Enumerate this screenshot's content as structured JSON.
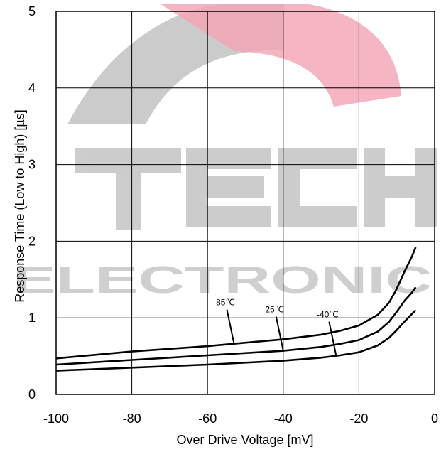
{
  "chart_data": {
    "type": "line",
    "title": "",
    "xlabel": "Over Drive Voltage [mV]",
    "ylabel": "Response Time (Low to High) [µs]",
    "xlim": [
      -100,
      0
    ],
    "ylim": [
      0,
      5
    ],
    "x_ticks": [
      -100,
      -80,
      -60,
      -40,
      -20,
      0
    ],
    "y_ticks": [
      0,
      1,
      2,
      3,
      4,
      5
    ],
    "x_tick_labels": [
      "-100",
      "-80",
      "-60",
      "-40",
      "-20",
      "0"
    ],
    "y_tick_labels": [
      "0",
      "1",
      "2",
      "3",
      "4",
      "5"
    ],
    "grid": true,
    "line_color": "#000000",
    "series": [
      {
        "name": "85℃",
        "points": [
          [
            -100,
            0.47
          ],
          [
            -80,
            0.56
          ],
          [
            -60,
            0.63
          ],
          [
            -40,
            0.72
          ],
          [
            -30,
            0.78
          ],
          [
            -25,
            0.83
          ],
          [
            -20,
            0.9
          ],
          [
            -15,
            1.04
          ],
          [
            -12,
            1.2
          ],
          [
            -10,
            1.38
          ],
          [
            -8,
            1.6
          ],
          [
            -6,
            1.8
          ],
          [
            -5,
            1.92
          ]
        ]
      },
      {
        "name": "25℃",
        "points": [
          [
            -100,
            0.39
          ],
          [
            -80,
            0.45
          ],
          [
            -60,
            0.51
          ],
          [
            -40,
            0.57
          ],
          [
            -30,
            0.62
          ],
          [
            -25,
            0.66
          ],
          [
            -20,
            0.71
          ],
          [
            -15,
            0.82
          ],
          [
            -12,
            0.95
          ],
          [
            -10,
            1.08
          ],
          [
            -8,
            1.22
          ],
          [
            -6,
            1.33
          ],
          [
            -5,
            1.4
          ]
        ]
      },
      {
        "name": "-40℃",
        "points": [
          [
            -100,
            0.31
          ],
          [
            -80,
            0.35
          ],
          [
            -60,
            0.39
          ],
          [
            -40,
            0.44
          ],
          [
            -30,
            0.48
          ],
          [
            -25,
            0.51
          ],
          [
            -20,
            0.55
          ],
          [
            -15,
            0.64
          ],
          [
            -12,
            0.74
          ],
          [
            -10,
            0.84
          ],
          [
            -8,
            0.95
          ],
          [
            -6,
            1.05
          ],
          [
            -5,
            1.1
          ]
        ]
      }
    ],
    "annotations": [
      {
        "text": "85℃",
        "series": 0,
        "at_x": -53
      },
      {
        "text": "25℃",
        "series": 1,
        "at_x": -40
      },
      {
        "text": "-40℃",
        "series": 2,
        "at_x": -26
      }
    ]
  },
  "watermark": {
    "words": [
      "ELECTRONIC"
    ],
    "colors": {
      "grey": "#b3b3b3",
      "pink": "#f4a3b4"
    }
  }
}
